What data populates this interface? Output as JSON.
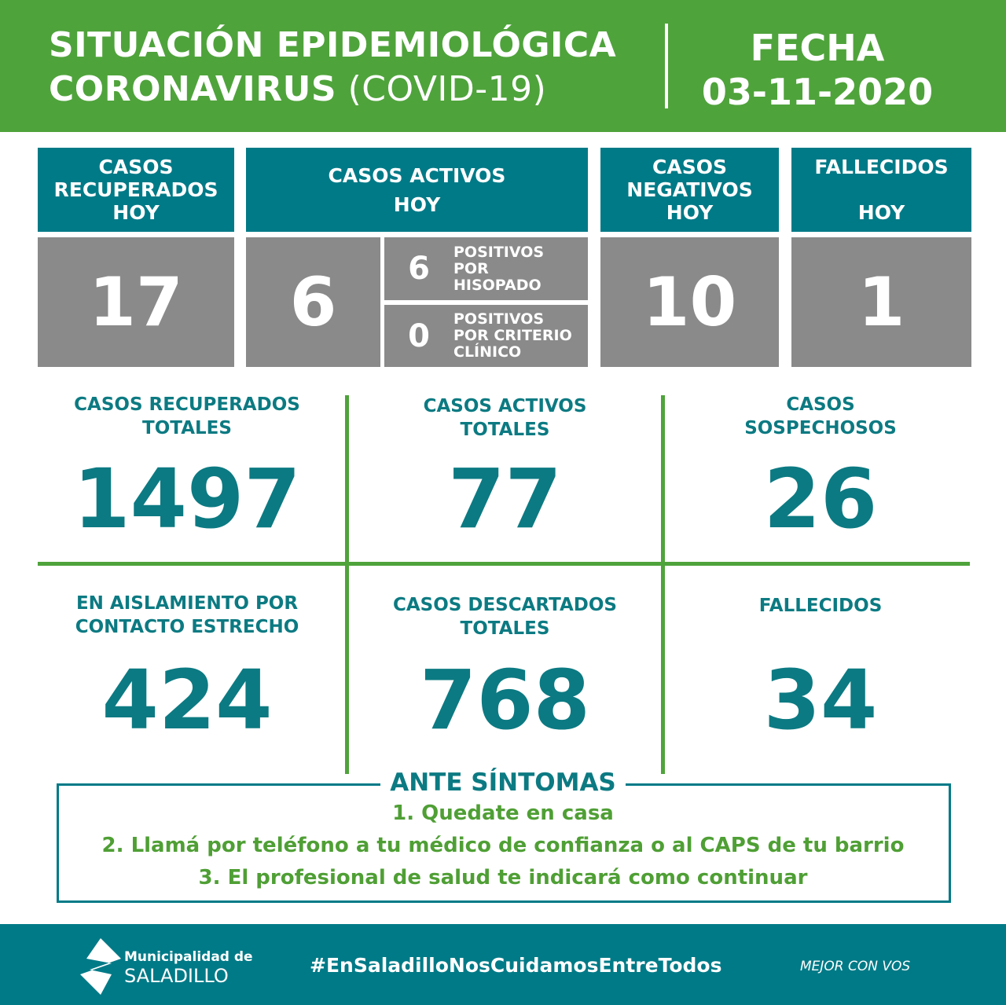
{
  "header": {
    "title_line1": "SITUACIÓN EPIDEMIOLÓGICA",
    "title_line2_bold": "CORONAVIRUS",
    "title_line2_thin": " (COVID-19)",
    "date_label": "FECHA",
    "date": "03-11-2020"
  },
  "today": {
    "recuperados": {
      "label": "CASOS\nRECUPERADOS\nHOY",
      "value": "17"
    },
    "activos": {
      "label": "CASOS ACTIVOS\nHOY",
      "value": "6",
      "hisopado_value": "6",
      "hisopado_label": "POSITIVOS\nPOR\nHISOPADO",
      "criterio_value": "0",
      "criterio_label": "POSITIVOS\nPOR CRITERIO\nCLÍNICO"
    },
    "negativos": {
      "label": "CASOS\nNEGATIVOS\nHOY",
      "value": "10"
    },
    "fallecidos": {
      "label": "FALLECIDOS\n\nHOY",
      "value": "1"
    }
  },
  "totals": [
    {
      "label": "CASOS RECUPERADOS\nTOTALES",
      "value": "1497"
    },
    {
      "label": "CASOS ACTIVOS\nTOTALES",
      "value": "77"
    },
    {
      "label": "CASOS\nSOSPECHOSOS",
      "value": "26"
    },
    {
      "label": "EN AISLAMIENTO POR\nCONTACTO ESTRECHO",
      "value": "424"
    },
    {
      "label": "CASOS DESCARTADOS\nTOTALES",
      "value": "768"
    },
    {
      "label": "FALLECIDOS",
      "value": "34"
    }
  ],
  "symptoms": {
    "title": "ANTE SÍNTOMAS",
    "items": [
      "1. Quedate en casa",
      "2. Llamá por teléfono a tu médico de confianza o al CAPS de tu barrio",
      "3. El profesional de salud te indicará como continuar"
    ]
  },
  "footer": {
    "logo_line1": "Municipalidad de",
    "logo_line2": "SALADILLO",
    "hashtag": "#EnSaladilloNosCuidamosEntreTodos",
    "slogan": "MEJOR CON VOS"
  },
  "colors": {
    "green": "#4fa33b",
    "teal": "#007a87",
    "gray": "#8a8a8a"
  }
}
